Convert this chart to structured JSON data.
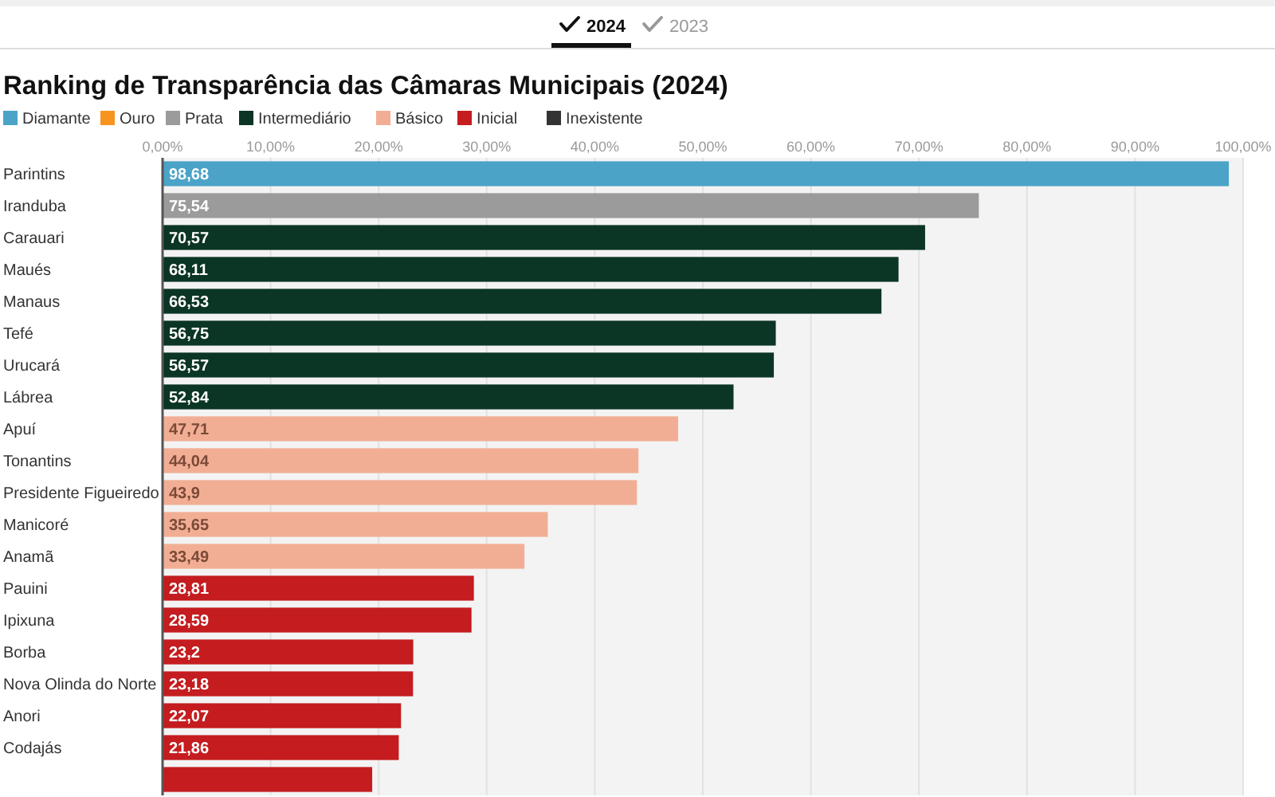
{
  "chart_data": {
    "type": "bar",
    "orientation": "horizontal",
    "stacked": true,
    "title": "Ranking de Transparência das Câmaras Municipais (2024)",
    "annotations": [
      "2024",
      "2023"
    ],
    "categories": [
      "Parintins",
      "Iranduba",
      "Carauari",
      "Maués",
      "Manaus",
      "Tefé",
      "Urucará",
      "Lábrea",
      "Apuí",
      "Tonantins",
      "Presidente Figueiredo",
      "Manicoré",
      "Anamã",
      "Pauini",
      "Ipixuna",
      "Borba",
      "Nova Olinda do Norte",
      "Anori",
      "Codajás",
      null
    ],
    "series": [
      {
        "name": "Diamante",
        "color": "#4ba3c7",
        "values": [
          98.68,
          null,
          null,
          null,
          null,
          null,
          null,
          null,
          null,
          null,
          null,
          null,
          null,
          null,
          null,
          null,
          null,
          null,
          null,
          null
        ],
        "value_labels": [
          "98,68",
          null,
          null,
          null,
          null,
          null,
          null,
          null,
          null,
          null,
          null,
          null,
          null,
          null,
          null,
          null,
          null,
          null,
          null,
          null
        ]
      },
      {
        "name": "Ouro",
        "color": "#f7941d",
        "values": [
          null,
          null,
          null,
          null,
          null,
          null,
          null,
          null,
          null,
          null,
          null,
          null,
          null,
          null,
          null,
          null,
          null,
          null,
          null,
          null
        ]
      },
      {
        "name": "Prata",
        "color": "#9b9b9b",
        "values": [
          null,
          75.54,
          null,
          null,
          null,
          null,
          null,
          null,
          null,
          null,
          null,
          null,
          null,
          null,
          null,
          null,
          null,
          null,
          null,
          null
        ],
        "value_labels": [
          null,
          "75,54",
          null,
          null,
          null,
          null,
          null,
          null,
          null,
          null,
          null,
          null,
          null,
          null,
          null,
          null,
          null,
          null,
          null,
          null
        ]
      },
      {
        "name": "Intermediário",
        "color": "#0b3524",
        "values": [
          null,
          null,
          70.57,
          68.11,
          66.53,
          56.75,
          56.57,
          52.84,
          null,
          null,
          null,
          null,
          null,
          null,
          null,
          null,
          null,
          null,
          null,
          null
        ],
        "value_labels": [
          null,
          null,
          "70,57",
          "68,11",
          "66,53",
          "56,75",
          "56,57",
          "52,84",
          null,
          null,
          null,
          null,
          null,
          null,
          null,
          null,
          null,
          null,
          null,
          null
        ]
      },
      {
        "name": "Básico",
        "color": "#f2ae94",
        "values": [
          null,
          null,
          null,
          null,
          null,
          null,
          null,
          null,
          47.71,
          44.04,
          43.9,
          35.65,
          33.49,
          null,
          null,
          null,
          null,
          null,
          null,
          null
        ],
        "value_labels": [
          null,
          null,
          null,
          null,
          null,
          null,
          null,
          null,
          "47,71",
          "44,04",
          "43,9",
          "35,65",
          "33,49",
          null,
          null,
          null,
          null,
          null,
          null,
          null
        ]
      },
      {
        "name": "Inicial",
        "color": "#c41c1f",
        "values": [
          null,
          null,
          null,
          null,
          null,
          null,
          null,
          null,
          null,
          null,
          null,
          null,
          null,
          28.81,
          28.59,
          23.2,
          23.18,
          22.07,
          21.86,
          19.4
        ],
        "value_labels": [
          null,
          null,
          null,
          null,
          null,
          null,
          null,
          null,
          null,
          null,
          null,
          null,
          null,
          "28,81",
          "28,59",
          "23,2",
          "23,18",
          "22,07",
          "21,86",
          null
        ]
      },
      {
        "name": "Inexistente",
        "color": "#333333",
        "values": [
          null,
          null,
          null,
          null,
          null,
          null,
          null,
          null,
          null,
          null,
          null,
          null,
          null,
          null,
          null,
          null,
          null,
          null,
          null,
          null
        ]
      }
    ],
    "xlim": [
      0,
      100
    ],
    "xticks": [
      {
        "value": 0,
        "label": "0,00%"
      },
      {
        "value": 10,
        "label": "10,00%"
      },
      {
        "value": 20,
        "label": "20,00%"
      },
      {
        "value": 30,
        "label": "30,00%"
      },
      {
        "value": 40,
        "label": "40,00%"
      },
      {
        "value": 50,
        "label": "50,00%"
      },
      {
        "value": 60,
        "label": "60,00%"
      },
      {
        "value": 70,
        "label": "70,00%"
      },
      {
        "value": 80,
        "label": "80,00%"
      },
      {
        "value": 90,
        "label": "90,00%"
      },
      {
        "value": 100,
        "label": "100,00%"
      }
    ],
    "grid": "x",
    "legend": "top left"
  }
}
